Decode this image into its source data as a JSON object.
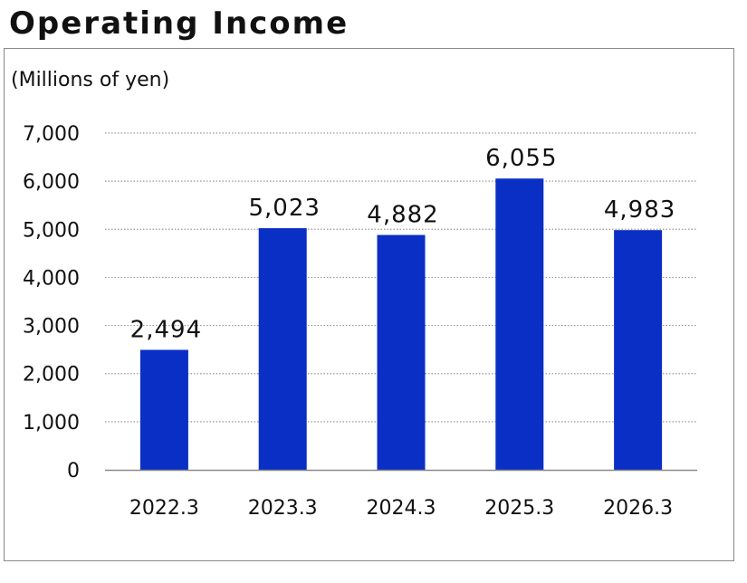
{
  "title": "Operating Income",
  "unit_label": "(Millions of yen)",
  "chart_data": {
    "type": "bar",
    "title": "Operating Income",
    "ylabel": "(Millions of yen)",
    "xlabel": "",
    "categories": [
      "2022.3",
      "2023.3",
      "2024.3",
      "2025.3",
      "2026.3"
    ],
    "values": [
      2494,
      5023,
      4882,
      6055,
      4983
    ],
    "data_labels": [
      "2,494",
      "5,023",
      "4,882",
      "6,055",
      "4,983"
    ],
    "ylim": [
      0,
      7000
    ],
    "yticks": [
      0,
      1000,
      2000,
      3000,
      4000,
      5000,
      6000,
      7000
    ],
    "ytick_labels": [
      "0",
      "1,000",
      "2,000",
      "3,000",
      "4,000",
      "5,000",
      "6,000",
      "7,000"
    ],
    "grid": "horizontal-dotted",
    "legend": "none",
    "bar_color": "#0a2fc4"
  }
}
